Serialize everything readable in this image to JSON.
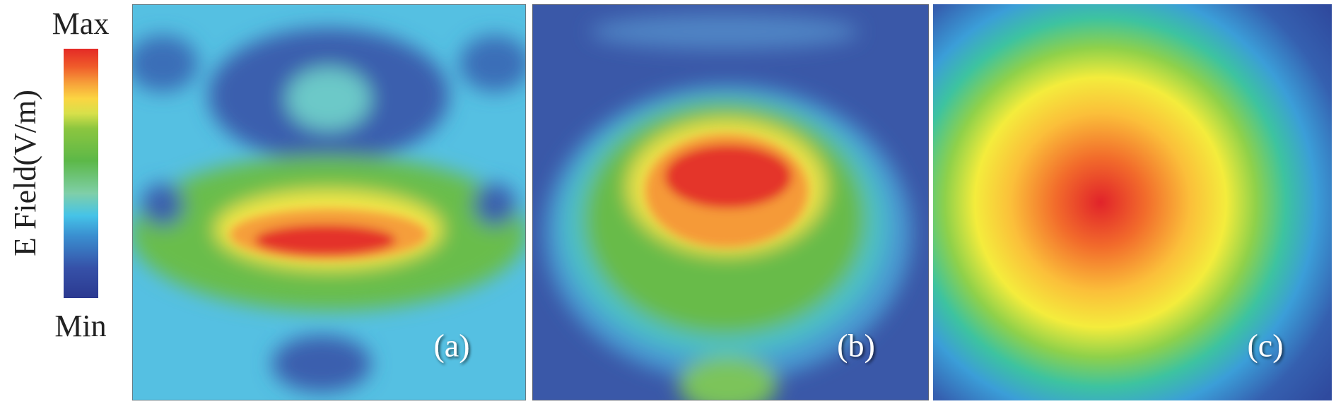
{
  "colorbar": {
    "title": "E Field(V/m)",
    "max_label": "Max",
    "min_label": "Min"
  },
  "panels": [
    {
      "label": "(a)"
    },
    {
      "label": "(b)"
    },
    {
      "label": "(c)"
    }
  ]
}
